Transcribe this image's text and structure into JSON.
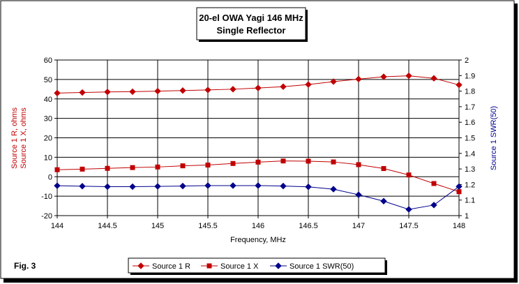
{
  "chart_data": {
    "type": "line",
    "title": "20-el OWA Yagi 146 MHz",
    "subtitle": "Single Reflector",
    "xlabel": "Frequency, MHz",
    "ylabel_left_line1": "Source 1 R,  ohms",
    "ylabel_left_line2": "Source 1 X,  ohms",
    "ylabel_right": "Source 1 SWR(50)",
    "figure_label": "Fig. 3",
    "x": [
      144,
      144.25,
      144.5,
      144.75,
      145,
      145.25,
      145.5,
      145.75,
      146,
      146.25,
      146.5,
      146.75,
      147,
      147.25,
      147.5,
      147.75,
      148
    ],
    "xlim": [
      144,
      148
    ],
    "x_ticks": [
      "144",
      "144.5",
      "145",
      "145.5",
      "146",
      "146.5",
      "147",
      "147.5",
      "148"
    ],
    "x_tick_values": [
      144,
      144.5,
      145,
      145.5,
      146,
      146.5,
      147,
      147.5,
      148
    ],
    "ylim_left": [
      -20,
      60
    ],
    "y_ticks_left": [
      "60",
      "50",
      "40",
      "30",
      "20",
      "10",
      "0",
      "-10",
      "-20"
    ],
    "y_tick_values_left": [
      60,
      50,
      40,
      30,
      20,
      10,
      0,
      -10,
      -20
    ],
    "ylim_right": [
      1,
      2
    ],
    "y_ticks_right": [
      "2",
      "1.9",
      "1.8",
      "1.7",
      "1.6",
      "1.5",
      "1.4",
      "1.3",
      "1.2",
      "1.1",
      "1"
    ],
    "y_tick_values_right": [
      2,
      1.9,
      1.8,
      1.7,
      1.6,
      1.5,
      1.4,
      1.3,
      1.2,
      1.1,
      1
    ],
    "grid": true,
    "legend_position": "bottom",
    "series": [
      {
        "name": "Source 1 R",
        "axis": "left",
        "marker": "diamond",
        "color": "#c00000",
        "values": [
          43,
          43.3,
          43.6,
          43.7,
          44,
          44.3,
          44.6,
          45,
          45.6,
          46.3,
          47.4,
          48.9,
          50.2,
          51.4,
          51.9,
          50.6,
          47.2
        ]
      },
      {
        "name": "Source 1 X",
        "axis": "left",
        "marker": "square",
        "color": "#c00000",
        "values": [
          3.6,
          3.9,
          4.3,
          4.7,
          5,
          5.6,
          6,
          6.8,
          7.5,
          8.1,
          8,
          7.6,
          6.2,
          4.2,
          0.9,
          -3.5,
          -7.7
        ]
      },
      {
        "name": "Source 1 SWR(50)",
        "axis": "right",
        "marker": "diamond",
        "color": "#00008b",
        "values": [
          1.192,
          1.189,
          1.186,
          1.186,
          1.188,
          1.19,
          1.193,
          1.193,
          1.193,
          1.19,
          1.185,
          1.17,
          1.134,
          1.093,
          1.04,
          1.068,
          1.187
        ]
      }
    ]
  }
}
